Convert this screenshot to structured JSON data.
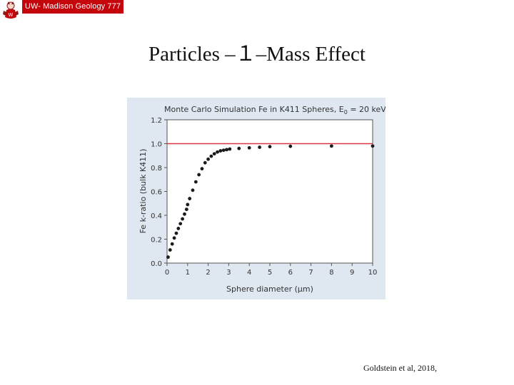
{
  "header": {
    "badge_text": "UW- Madison Geology  777",
    "badge_color": "#c5050c",
    "logo_icon": "uw-badger-mascot-icon"
  },
  "slide": {
    "title": "Particles  –１–Mass Effect",
    "citation": "Goldstein et al, 2018,"
  },
  "chart_data": {
    "type": "scatter",
    "title_main": "Monte Carlo Simulation Fe in K411 Spheres, E",
    "title_sub": "0",
    "title_tail": " = 20 keV",
    "xlabel": "Sphere diameter (μm)",
    "ylabel": "Fe k-ratio (bulk K411)",
    "xlim": [
      0,
      10
    ],
    "ylim": [
      0,
      1.2
    ],
    "xticks": [
      "0",
      "1",
      "2",
      "3",
      "4",
      "5",
      "6",
      "7",
      "8",
      "9",
      "10"
    ],
    "yticks": [
      "0.0",
      "0.2",
      "0.4",
      "0.6",
      "0.8",
      "1.0",
      "1.2"
    ],
    "reference_line": {
      "y": 1.0,
      "color": "#d9363e"
    },
    "series": [
      {
        "name": "Fe k-ratio",
        "color": "#1a1a1a",
        "x": [
          0.05,
          0.15,
          0.25,
          0.35,
          0.45,
          0.55,
          0.65,
          0.75,
          0.85,
          0.95,
          1.0,
          1.1,
          1.25,
          1.4,
          1.55,
          1.7,
          1.85,
          2.0,
          2.15,
          2.3,
          2.45,
          2.6,
          2.75,
          2.9,
          3.05,
          3.5,
          4.0,
          4.5,
          5.0,
          6.0,
          8.0,
          10.0
        ],
        "y": [
          0.05,
          0.11,
          0.16,
          0.21,
          0.25,
          0.29,
          0.33,
          0.37,
          0.41,
          0.45,
          0.49,
          0.54,
          0.61,
          0.68,
          0.74,
          0.79,
          0.84,
          0.87,
          0.895,
          0.915,
          0.93,
          0.94,
          0.945,
          0.95,
          0.955,
          0.96,
          0.965,
          0.97,
          0.975,
          0.978,
          0.98,
          0.98
        ]
      }
    ]
  },
  "colors": {
    "figure_bg": "#dfe7f1",
    "plot_bg": "#ffffff",
    "axis": "#555555",
    "text": "#333333"
  }
}
